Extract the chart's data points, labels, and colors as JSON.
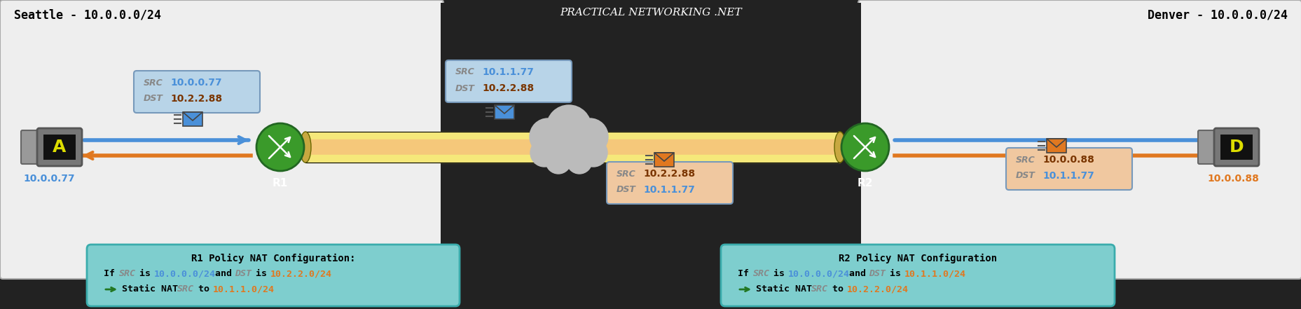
{
  "title": "PRACTICAL NETWORKING .NET",
  "seattle_label": "Seattle - 10.0.0.0/24",
  "denver_label": "Denver - 10.0.0.0/24",
  "computer_a_label": "10.0.0.77",
  "computer_d_label": "10.0.0.88",
  "pkt1_src": "10.0.0.77",
  "pkt1_dst": "10.2.2.88",
  "pkt2_src": "10.1.1.77",
  "pkt2_dst": "10.2.2.88",
  "pkt3_src": "10.2.2.88",
  "pkt3_dst": "10.1.1.77",
  "pkt4_src": "10.0.0.88",
  "pkt4_dst": "10.1.1.77",
  "r1_nat_title": "R1 Policy NAT Configuration:",
  "r2_nat_title": "R2 Policy NAT Configuration",
  "blue_color": "#4a90d9",
  "orange_color": "#e07820",
  "dark_brown": "#7a3500",
  "green_router": "#3a9a2a",
  "light_blue_bg": "#b8d4e8",
  "light_orange_bg": "#f0c8a0",
  "teal_bg": "#7ecece",
  "gray_panel": "#eeeeee",
  "tunnel_yellow": "#f5e87a",
  "tunnel_peach": "#f5c87a",
  "cloud_gray": "#bbbbbb",
  "dark_bg": "#222222"
}
